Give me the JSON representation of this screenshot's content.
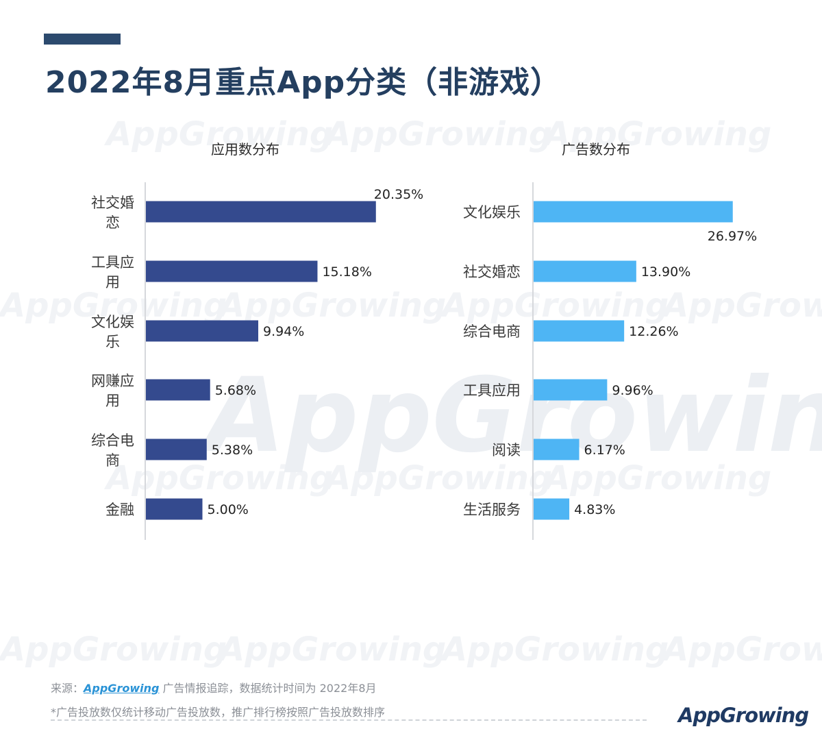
{
  "page": {
    "title": "2022年8月重点App分类（非游戏）",
    "watermark": "AppGrowing",
    "source_label": "来源：",
    "source_brand": "AppGrowing",
    "source_text": " 广告情报追踪，数据统计时间为 2022年8月",
    "note": "*广告投放数仅统计移动广告投放数，推广排行榜按照广告投放数排序",
    "logo": "AppGrowing"
  },
  "colors": {
    "title": "#243f60",
    "accent_bar": "#2c4a6e",
    "app_bar": "#344a8e",
    "ad_bar": "#4eb5f4",
    "axis": "#d6d8dc",
    "label": "#3a3a3a"
  },
  "chart_data": [
    {
      "type": "bar",
      "orientation": "horizontal",
      "title": "应用数分布",
      "categories": [
        "社交婚恋",
        "工具应用",
        "文化娱乐",
        "网赚应用",
        "综合电商",
        "金融"
      ],
      "values": [
        20.35,
        15.18,
        9.94,
        5.68,
        5.38,
        5.0
      ],
      "value_labels": [
        "20.35%",
        "15.18%",
        "9.94%",
        "5.68%",
        "5.38%",
        "5.00%"
      ],
      "unit": "%",
      "color": "#344a8e"
    },
    {
      "type": "bar",
      "orientation": "horizontal",
      "title": "广告数分布",
      "categories": [
        "文化娱乐",
        "社交婚恋",
        "综合电商",
        "工具应用",
        "阅读",
        "生活服务"
      ],
      "values": [
        26.97,
        13.9,
        12.26,
        9.96,
        6.17,
        4.83
      ],
      "value_labels": [
        "26.97%",
        "13.90%",
        "12.26%",
        "9.96%",
        "6.17%",
        "4.83%"
      ],
      "unit": "%",
      "color": "#4eb5f4"
    }
  ]
}
